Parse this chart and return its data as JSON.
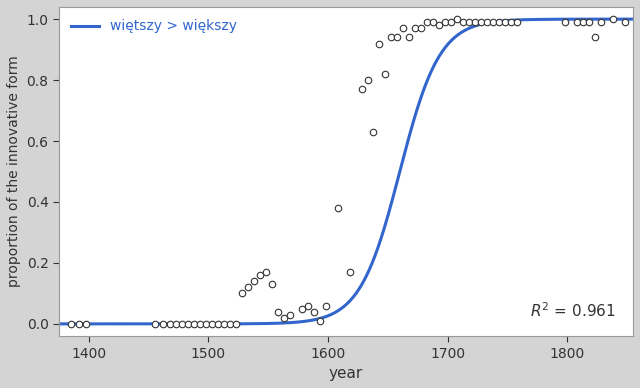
{
  "scatter_x": [
    1385,
    1392,
    1398,
    1455,
    1462,
    1468,
    1473,
    1478,
    1483,
    1488,
    1493,
    1498,
    1503,
    1508,
    1513,
    1518,
    1523,
    1528,
    1533,
    1538,
    1543,
    1548,
    1553,
    1558,
    1563,
    1568,
    1578,
    1583,
    1588,
    1593,
    1598,
    1608,
    1618,
    1628,
    1633,
    1638,
    1643,
    1648,
    1653,
    1658,
    1663,
    1668,
    1673,
    1678,
    1683,
    1688,
    1693,
    1698,
    1703,
    1708,
    1713,
    1718,
    1723,
    1728,
    1733,
    1738,
    1743,
    1748,
    1753,
    1758,
    1798,
    1808,
    1813,
    1818,
    1823,
    1828,
    1838,
    1848
  ],
  "scatter_y": [
    0.0,
    0.0,
    0.0,
    0.0,
    0.0,
    0.0,
    0.0,
    0.0,
    0.0,
    0.0,
    0.0,
    0.0,
    0.0,
    0.0,
    0.0,
    0.0,
    0.0,
    0.1,
    0.12,
    0.14,
    0.16,
    0.17,
    0.13,
    0.04,
    0.02,
    0.03,
    0.05,
    0.06,
    0.04,
    0.01,
    0.06,
    0.38,
    0.17,
    0.77,
    0.8,
    0.63,
    0.92,
    0.82,
    0.94,
    0.94,
    0.97,
    0.94,
    0.97,
    0.97,
    0.99,
    0.99,
    0.98,
    0.99,
    0.99,
    1.0,
    0.99,
    0.99,
    0.99,
    0.99,
    0.99,
    0.99,
    0.99,
    0.99,
    0.99,
    0.99,
    0.99,
    0.99,
    0.99,
    0.99,
    0.94,
    0.99,
    1.0,
    0.99
  ],
  "logistic_midpoint": 1660,
  "logistic_k": 0.06,
  "xlim": [
    1375,
    1855
  ],
  "ylim": [
    -0.04,
    1.04
  ],
  "xticks": [
    1400,
    1500,
    1600,
    1700,
    1800
  ],
  "yticks": [
    0.0,
    0.2,
    0.4,
    0.6,
    0.8,
    1.0
  ],
  "xlabel": "year",
  "ylabel": "proportion of the innovative form",
  "legend_label": "więtszy > większy",
  "r2_text": "$R^2$ = 0.961",
  "line_color": "#3366cc",
  "scatter_facecolor": "white",
  "scatter_edgecolor": "#333333",
  "scatter_size": 22,
  "scatter_linewidth": 0.8,
  "line_width": 2.2,
  "bg_color": "#d4d4d4",
  "plot_bg_color": "#ffffff"
}
